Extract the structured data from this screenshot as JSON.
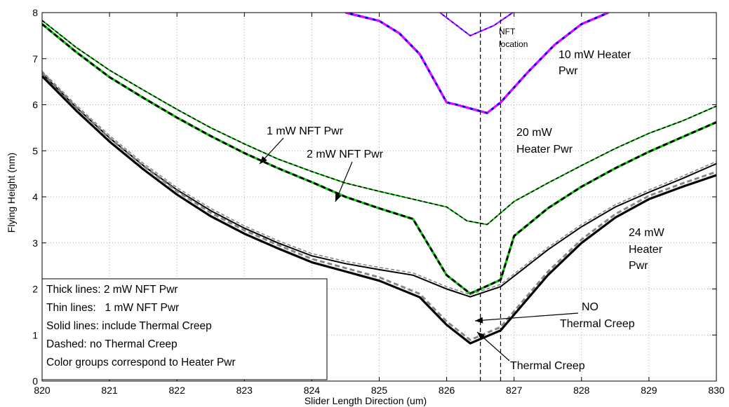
{
  "chart_data": {
    "type": "line",
    "title": "",
    "xlabel": "Slider Length Direction (um)",
    "ylabel": "Flying Height (nm)",
    "xlim": [
      820,
      830
    ],
    "ylim": [
      0,
      8
    ],
    "xticks": [
      "820",
      "821",
      "822",
      "823",
      "824",
      "825",
      "826",
      "827",
      "828",
      "829",
      "830"
    ],
    "yticks": [
      "0",
      "1",
      "2",
      "3",
      "4",
      "5",
      "6",
      "7",
      "8"
    ],
    "grid": true,
    "series": [
      {
        "heater": "10 mW",
        "nft": "2 mW",
        "creep": "include",
        "color": "#0000ff",
        "dash_color": "#ff00ff",
        "x": [
          824.5,
          825,
          825.3,
          825.6,
          826.0,
          826.15,
          826.35,
          826.6,
          826.8,
          827.2,
          827.6,
          828.0,
          828.4
        ],
        "y": [
          8.0,
          7.82,
          7.55,
          7.1,
          6.05,
          6.0,
          5.92,
          5.82,
          6.05,
          6.7,
          7.3,
          7.75,
          8.0
        ]
      },
      {
        "heater": "10 mW",
        "nft": "1 mW",
        "creep": "include",
        "color": "#0000ff",
        "dash_color": "#ff00ff",
        "x": [
          825.9,
          826.35,
          826.7,
          826.98
        ],
        "y": [
          8.0,
          7.5,
          7.72,
          8.0
        ]
      },
      {
        "heater": "20 mW",
        "nft": "1 mW",
        "creep": "include",
        "color": "#00cc00",
        "dash_color": "#000000",
        "x": [
          820,
          820.5,
          821,
          821.5,
          822,
          822.5,
          823,
          823.5,
          824,
          824.5,
          825,
          825.5,
          826,
          826.3,
          826.6,
          827,
          827.5,
          828,
          828.5,
          829,
          829.5,
          830
        ],
        "y": [
          7.83,
          7.25,
          6.75,
          6.32,
          5.9,
          5.5,
          5.15,
          4.82,
          4.55,
          4.3,
          4.12,
          3.95,
          3.78,
          3.48,
          3.4,
          3.9,
          4.3,
          4.68,
          5.05,
          5.38,
          5.65,
          5.97
        ]
      },
      {
        "heater": "20 mW",
        "nft": "2 mW",
        "creep": "include",
        "color": "#00cc00",
        "dash_color": "#000000",
        "x": [
          820,
          820.5,
          821,
          821.5,
          822,
          822.5,
          823,
          823.5,
          824,
          824.5,
          825,
          825.5,
          826,
          826.35,
          826.8,
          827,
          827.5,
          828,
          828.5,
          829,
          829.5,
          830
        ],
        "y": [
          7.75,
          7.15,
          6.6,
          6.15,
          5.72,
          5.32,
          4.95,
          4.62,
          4.32,
          4.0,
          3.75,
          3.52,
          2.3,
          1.9,
          2.2,
          3.15,
          3.75,
          4.22,
          4.62,
          4.98,
          5.3,
          5.62
        ]
      },
      {
        "heater": "24 mW",
        "nft": "1 mW",
        "creep": "include",
        "color": "#000000",
        "dash_color": "#808080",
        "x": [
          820,
          820.5,
          821,
          821.5,
          822,
          822.5,
          823,
          823.5,
          824,
          824.5,
          825,
          825.5,
          826,
          826.35,
          826.8,
          827.5,
          828,
          828.5,
          829,
          829.5,
          830
        ],
        "y": [
          6.68,
          5.95,
          5.28,
          4.68,
          4.15,
          3.7,
          3.32,
          3.0,
          2.72,
          2.55,
          2.42,
          2.3,
          2.0,
          1.83,
          2.05,
          2.85,
          3.35,
          3.78,
          4.1,
          4.4,
          4.72
        ]
      },
      {
        "heater": "24 mW",
        "nft": "2 mW",
        "creep": "include",
        "color": "#000000",
        "dash_color": "#808080",
        "x": [
          820,
          820.5,
          821,
          821.5,
          822,
          822.5,
          823,
          823.5,
          824,
          824.5,
          825,
          825.6,
          826,
          826.35,
          826.8,
          827.5,
          828,
          828.5,
          829,
          829.5,
          830
        ],
        "y": [
          6.62,
          5.88,
          5.2,
          4.6,
          4.05,
          3.58,
          3.2,
          2.88,
          2.58,
          2.38,
          2.18,
          1.82,
          1.22,
          0.82,
          1.1,
          2.3,
          3.0,
          3.55,
          3.95,
          4.22,
          4.47
        ]
      }
    ],
    "nft_location_x": [
      826.5,
      826.8
    ],
    "annotations": {
      "nft_location": [
        "NFT",
        "location"
      ],
      "heater_10": [
        "10 mW Heater",
        "Pwr"
      ],
      "heater_20": [
        "20 mW",
        "Heater Pwr"
      ],
      "heater_24": [
        "24 mW",
        "Heater",
        "Pwr"
      ],
      "nft_1": "1 mW NFT Pwr",
      "nft_2": "2 mW NFT Pwr",
      "no_creep": [
        "NO",
        "Thermal Creep"
      ],
      "creep": "Thermal Creep"
    },
    "legend": {
      "placement": "bottom-left",
      "lines": [
        "Thick lines: 2 mW NFT Pwr",
        "Thin lines:   1 mW NFT Pwr",
        "Solid lines: include Thermal Creep",
        "Dashed: no Thermal Creep",
        "Color groups correspond to Heater Pwr"
      ]
    }
  }
}
